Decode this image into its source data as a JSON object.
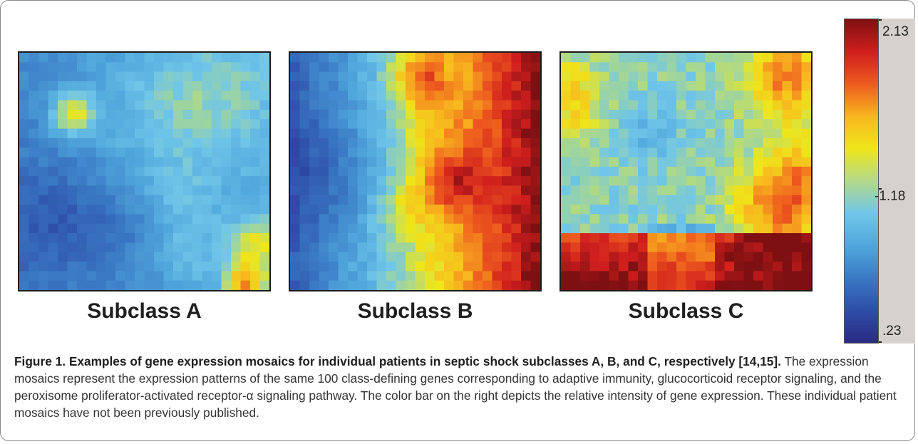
{
  "figure": {
    "panels": [
      {
        "id": "a",
        "label": "Subclass A"
      },
      {
        "id": "b",
        "label": "Subclass B"
      },
      {
        "id": "c",
        "label": "Subclass C"
      }
    ],
    "colorbar": {
      "max_label": "2.13",
      "mid_label": "-1.18",
      "min_label": ".23",
      "max": 2.13,
      "mid": -1.18,
      "min": 0.23
    },
    "caption": {
      "title": "Figure 1. Examples of gene expression mosaics for individual patients in septic shock subclasses A, B, and C, respectively [14,15].",
      "body": " The expression mosaics represent the expression patterns of the same 100 class-defining genes corresponding to adaptive immunity, glucocorticoid receptor signaling, and the peroxisome proliferator-activated receptor-α signaling pathway. The color bar on the right depicts the relative intensity of gene expression. These individual patient mosaics have not been previously published."
    }
  }
}
